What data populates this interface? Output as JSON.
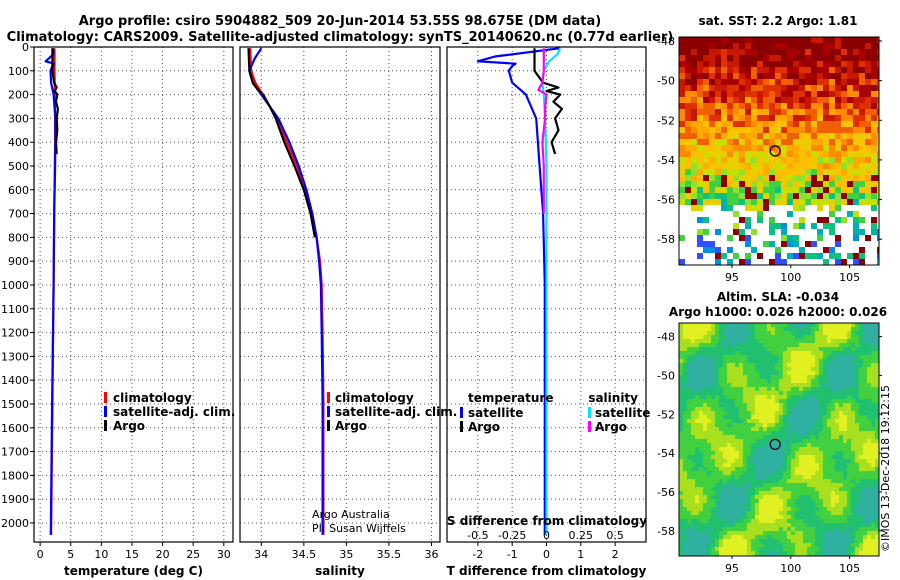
{
  "title": {
    "line1": "Argo profile: csiro 5904882_509 20-Jun-2014 53.55S 98.675E (DM data)",
    "line2": "Climatology: CARS2009. Satellite-adjusted climatology: synTS_20140620.nc (0.77d earlier)"
  },
  "colors": {
    "climatology": "#ff0000",
    "satellite": "#0000ff",
    "argo": "#000000",
    "sal_satellite": "#00e5ff",
    "sal_argo": "#ff00ff"
  },
  "credit": {
    "line1": "Argo Australia",
    "line2": "PI: Susan Wijffels"
  },
  "watermark": "©IMOS 13-Dec-2018 19:12:15",
  "chart_data": [
    {
      "type": "line",
      "id": "temperature",
      "xlabel": "temperature (deg C)",
      "ylabel": "",
      "xlim": [
        -1,
        31.5
      ],
      "ylim": [
        2080,
        0
      ],
      "xticks": [
        "0",
        "5",
        "10",
        "15",
        "20",
        "25",
        "30"
      ],
      "xtick_values": [
        0,
        5,
        10,
        15,
        20,
        25,
        30
      ],
      "yticks": [
        "0",
        "100",
        "200",
        "300",
        "400",
        "500",
        "600",
        "700",
        "800",
        "900",
        "1000",
        "1100",
        "1200",
        "1300",
        "1400",
        "1500",
        "1600",
        "1700",
        "1800",
        "1900",
        "2000"
      ],
      "ytick_values": [
        0,
        100,
        200,
        300,
        400,
        500,
        600,
        700,
        800,
        900,
        1000,
        1100,
        1200,
        1300,
        1400,
        1500,
        1600,
        1700,
        1800,
        1900,
        2000
      ],
      "grid": true,
      "legend": [
        "climatology",
        "satellite-adj. clim.",
        "Argo"
      ],
      "series": [
        {
          "name": "climatology",
          "color": "#ff0000",
          "depth": [
            5,
            100,
            200,
            300,
            400,
            500,
            700,
            1000,
            1500,
            2050
          ],
          "values": [
            2.35,
            2.35,
            2.4,
            2.45,
            2.45,
            2.4,
            2.3,
            2.2,
            2.0,
            1.8
          ]
        },
        {
          "name": "satellite-adj. clim.",
          "color": "#0000ff",
          "depth": [
            5,
            30,
            60,
            70,
            80,
            100,
            150,
            200,
            300,
            400,
            500,
            700,
            1000,
            1500,
            2050
          ],
          "values": [
            2.1,
            2.2,
            0.9,
            2.3,
            2.0,
            1.7,
            1.8,
            2.2,
            2.5,
            2.5,
            2.45,
            2.3,
            2.2,
            1.95,
            1.75
          ]
        },
        {
          "name": "Argo",
          "color": "#000000",
          "depth": [
            5,
            100,
            150,
            170,
            185,
            200,
            230,
            260,
            300,
            350,
            400,
            450
          ],
          "values": [
            2.0,
            2.0,
            2.3,
            2.7,
            2.4,
            2.8,
            2.6,
            2.9,
            2.7,
            2.8,
            2.6,
            2.7
          ]
        }
      ]
    },
    {
      "type": "line",
      "id": "salinity",
      "xlabel": "salinity",
      "ylabel": "",
      "xlim": [
        33.75,
        36.1
      ],
      "ylim": [
        2080,
        0
      ],
      "xticks": [
        "34",
        "34.5",
        "35",
        "35.5",
        "36"
      ],
      "xtick_values": [
        34,
        34.5,
        35,
        35.5,
        36
      ],
      "grid": true,
      "legend": [
        "climatology",
        "satellite-adj. clim.",
        "Argo"
      ],
      "series": [
        {
          "name": "climatology",
          "color": "#ff0000",
          "depth": [
            5,
            100,
            150,
            200,
            300,
            400,
            500,
            600,
            700,
            800,
            900,
            1000,
            1200,
            1500,
            2050
          ],
          "values": [
            33.87,
            33.88,
            33.93,
            34.02,
            34.18,
            34.3,
            34.42,
            34.52,
            34.6,
            34.65,
            34.69,
            34.71,
            34.72,
            34.73,
            34.73
          ]
        },
        {
          "name": "satellite-adj. clim.",
          "color": "#0000ff",
          "depth": [
            5,
            50,
            100,
            150,
            200,
            250,
            300,
            400,
            500,
            600,
            700,
            800,
            900,
            1000,
            1200,
            1500,
            2050
          ],
          "values": [
            34.0,
            33.92,
            33.86,
            33.9,
            34.0,
            34.1,
            34.2,
            34.33,
            34.44,
            34.53,
            34.6,
            34.65,
            34.68,
            34.7,
            34.71,
            34.72,
            34.72
          ]
        },
        {
          "name": "Argo",
          "color": "#000000",
          "depth": [
            5,
            100,
            150,
            180,
            200,
            250,
            300,
            400,
            500,
            600,
            700,
            800
          ],
          "values": [
            33.85,
            33.86,
            33.9,
            33.96,
            34.02,
            34.1,
            34.17,
            34.27,
            34.39,
            34.5,
            34.58,
            34.63
          ]
        }
      ]
    },
    {
      "type": "line",
      "id": "difference",
      "xlabel": "T difference from climatology",
      "top_xlabel": "S difference from climatology",
      "xlim": [
        -2.9,
        2.9
      ],
      "ylim": [
        2080,
        0
      ],
      "xticks": [
        "-2",
        "-1",
        "0",
        "1",
        "2"
      ],
      "xtick_values": [
        -2,
        -1,
        0,
        1,
        2
      ],
      "top_xticks": [
        "-0.5",
        "-0.25",
        "0",
        "0.25",
        "0.5"
      ],
      "top_xtick_values": [
        -0.5,
        -0.25,
        0,
        0.25,
        0.5
      ],
      "top_scale": 4,
      "grid": true,
      "legend_temperature_title": "temperature",
      "legend_salinity_title": "salinity",
      "legend_temperature": [
        "satellite",
        "Argo"
      ],
      "legend_salinity": [
        "satellite",
        "Argo"
      ],
      "series": [
        {
          "name": "temperature satellite",
          "color": "#0000ff",
          "depth": [
            5,
            40,
            60,
            70,
            80,
            100,
            150,
            200,
            300,
            400,
            500,
            700,
            1000,
            1500,
            2050
          ],
          "values": [
            0.4,
            -1.5,
            -2.0,
            -0.9,
            -1.0,
            -1.1,
            -1.0,
            -0.6,
            -0.3,
            -0.25,
            -0.2,
            -0.1,
            -0.05,
            -0.05,
            -0.05
          ]
        },
        {
          "name": "temperature Argo",
          "color": "#000000",
          "depth": [
            5,
            100,
            150,
            170,
            185,
            200,
            230,
            260,
            300,
            350,
            400,
            450
          ],
          "values": [
            -0.35,
            -0.35,
            -0.1,
            0.35,
            0.0,
            0.4,
            0.2,
            0.45,
            0.25,
            0.35,
            0.15,
            0.25
          ]
        },
        {
          "name": "salinity satellite",
          "color": "#00e5ff",
          "depth": [
            5,
            30,
            60,
            100,
            150,
            200,
            300,
            500,
            1000,
            2050
          ],
          "values": [
            0.1,
            0.08,
            0.02,
            -0.02,
            -0.03,
            -0.02,
            -0.01,
            0.0,
            0.0,
            0.0
          ]
        },
        {
          "name": "salinity Argo",
          "color": "#ff00ff",
          "depth": [
            5,
            50,
            100,
            150,
            180,
            200,
            250,
            300,
            400,
            500,
            700
          ],
          "values": [
            -0.02,
            -0.02,
            -0.02,
            -0.03,
            -0.06,
            0.0,
            -0.01,
            -0.01,
            -0.03,
            -0.02,
            -0.02
          ]
        }
      ]
    },
    {
      "type": "heatmap",
      "id": "sst_map",
      "title": "sat. SST: 2.2 Argo: 1.81",
      "xlim": [
        90.5,
        107.5
      ],
      "ylim": [
        -59.3,
        -47.8
      ],
      "xticks": [
        "95",
        "100",
        "105"
      ],
      "xtick_values": [
        95,
        100,
        105
      ],
      "yticks": [
        "-48",
        "-50",
        "-52",
        "-54",
        "-56",
        "-58"
      ],
      "ytick_values": [
        -48,
        -50,
        -52,
        -54,
        -56,
        -58
      ],
      "argo_position": [
        98.675,
        -53.55
      ]
    },
    {
      "type": "heatmap",
      "id": "sla_map",
      "title": "Altim. SLA: -0.034",
      "subtitle": "Argo h1000: 0.026 h2000: 0.026",
      "xlim": [
        90.5,
        107.5
      ],
      "ylim": [
        -59.3,
        -47.3
      ],
      "xticks": [
        "95",
        "100",
        "105"
      ],
      "xtick_values": [
        95,
        100,
        105
      ],
      "yticks": [
        "-48",
        "-50",
        "-52",
        "-54",
        "-56",
        "-58"
      ],
      "ytick_values": [
        -48,
        -50,
        -52,
        -54,
        -56,
        -58
      ],
      "argo_position": [
        98.675,
        -53.55
      ]
    }
  ]
}
